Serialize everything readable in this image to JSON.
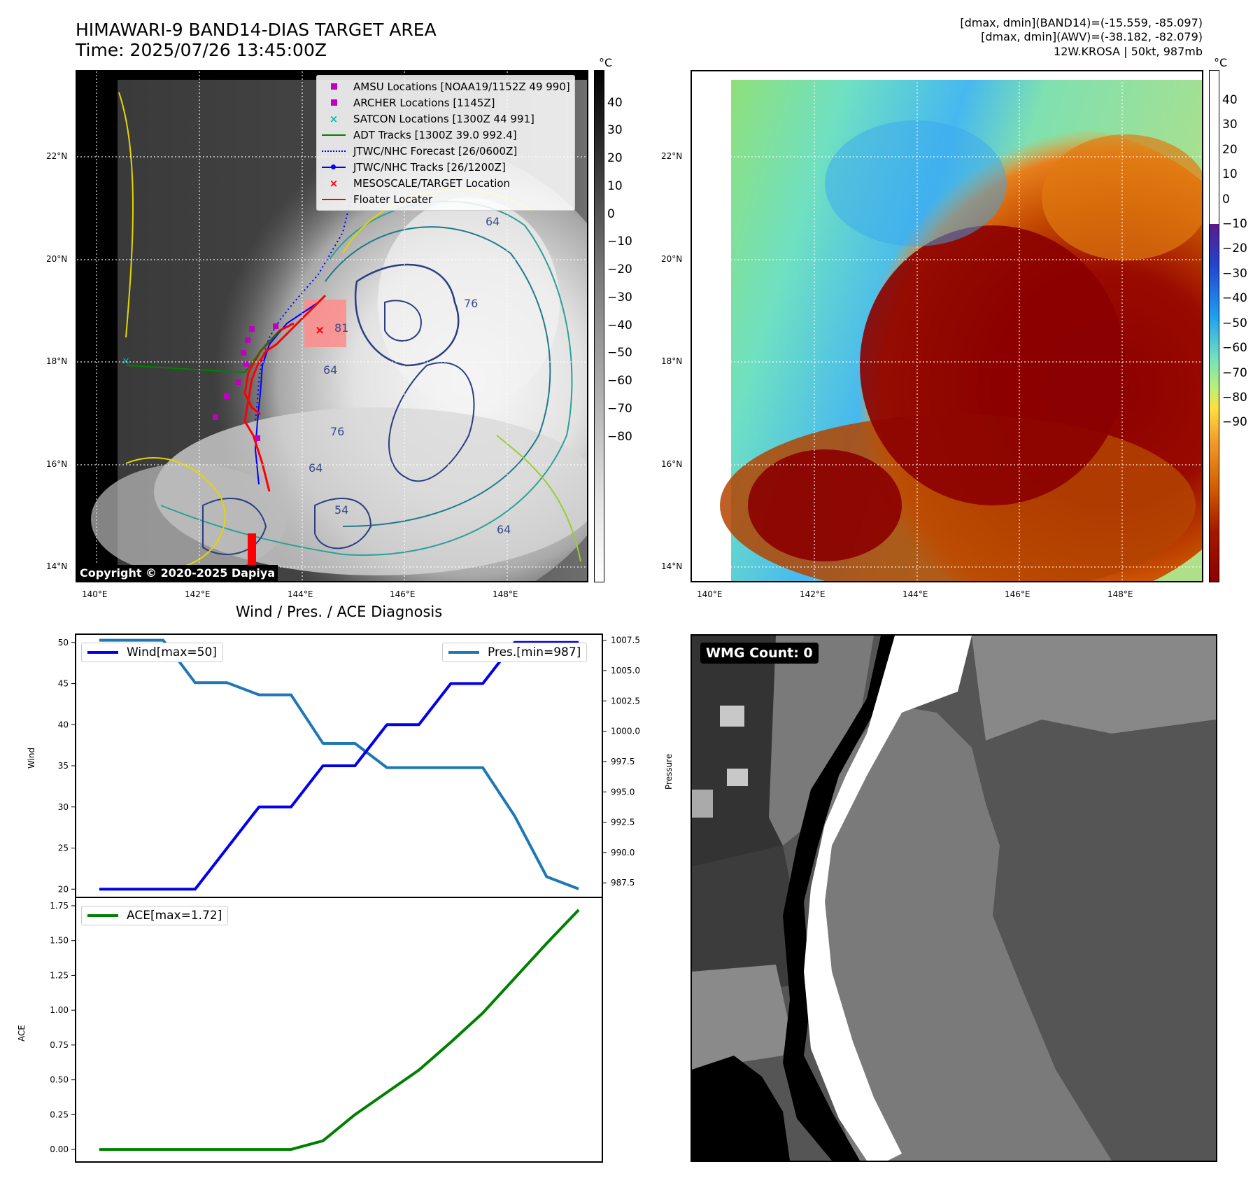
{
  "header": {
    "title_line1": "HIMAWARI-9 BAND14-DIAS TARGET AREA",
    "title_line2": "Time: 2025/07/26 13:45:00Z",
    "info_line1": "[dmax, dmin](BAND14)=(-15.559, -85.097)",
    "info_line2": "[dmax, dmin](AWV)=(-38.182, -82.079)",
    "info_line3": "12W.KROSA | 50kt, 987mb"
  },
  "map_axes": {
    "lat_labels": [
      "22°N",
      "20°N",
      "18°N",
      "16°N",
      "14°N"
    ],
    "lon_labels": [
      "140°E",
      "142°E",
      "144°E",
      "146°E",
      "148°E"
    ],
    "unit": "°C",
    "grayscale_colorbar_ticks": [
      "40",
      "30",
      "20",
      "10",
      "0",
      "−10",
      "−20",
      "−30",
      "−40",
      "−50",
      "−60",
      "−70",
      "−80"
    ],
    "color_colorbar_ticks": [
      "40",
      "30",
      "20",
      "10",
      "0",
      "−10",
      "−20",
      "−30",
      "−40",
      "−50",
      "−60",
      "−70",
      "−80",
      "−90"
    ]
  },
  "contour_labels": [
    "76",
    "81",
    "64",
    "76",
    "64",
    "64",
    "64",
    "54"
  ],
  "legend": {
    "items": [
      {
        "label": "AMSU Locations [NOAA19/1152Z 49 990]",
        "marker": "square",
        "color": "#bf00bf"
      },
      {
        "label": "ARCHER Locations [1145Z]",
        "marker": "square",
        "color": "#bf00bf"
      },
      {
        "label": "SATCON Locations [1300Z 44 991]",
        "marker": "x",
        "color": "#00bfbf"
      },
      {
        "label": "ADT Tracks [1300Z 39.0 992.4]",
        "marker": "line",
        "color": "#008000"
      },
      {
        "label": "JTWC/NHC Forecast [26/0600Z]",
        "marker": "dotted",
        "color": "#0000ff"
      },
      {
        "label": "JTWC/NHC Tracks [26/1200Z]",
        "marker": "line-dot",
        "color": "#0000ff"
      },
      {
        "label": "MESOSCALE/TARGET Location",
        "marker": "x",
        "color": "#ff0000"
      },
      {
        "label": "Floater Locater",
        "marker": "line",
        "color": "#ff0000"
      }
    ]
  },
  "copyright": "Copyright © 2020-2025 Dapiya",
  "wmg_label": "WMG Count: 0",
  "chart_data": [
    {
      "type": "line",
      "title": "Wind / Pres. / ACE Diagnosis",
      "ylabel": "Wind",
      "ylabel_right": "Pressure",
      "ylim": [
        19,
        51
      ],
      "ylim_right": [
        986.3,
        1008.0
      ],
      "yticks": [
        "50",
        "45",
        "40",
        "35",
        "30",
        "25",
        "20"
      ],
      "yticks_right": [
        "1007.5",
        "1005.0",
        "1002.5",
        "1000.0",
        "997.5",
        "995.0",
        "992.5",
        "990.0",
        "987.5"
      ],
      "x": [
        0,
        1,
        2,
        3,
        4,
        5,
        6,
        7,
        8,
        9,
        10,
        11,
        12,
        13,
        14,
        15
      ],
      "series": [
        {
          "name": "Wind[max=50]",
          "axis": "left",
          "color": "#0000ee",
          "values": [
            20,
            20,
            20,
            20,
            25,
            30,
            30,
            35,
            35,
            40,
            40,
            45,
            45,
            50,
            50,
            50
          ]
        },
        {
          "name": "Pres.[min=987]",
          "axis": "right",
          "color": "#1f77b4",
          "values": [
            1007.5,
            1007.5,
            1007.5,
            1004.0,
            1004.0,
            1003.0,
            1003.0,
            999.0,
            999.0,
            997.0,
            997.0,
            997.0,
            997.0,
            993.0,
            988.0,
            987.0
          ]
        }
      ]
    },
    {
      "type": "line",
      "ylabel": "ACE",
      "ylim": [
        -0.09,
        1.81
      ],
      "yticks": [
        "1.75",
        "1.50",
        "1.25",
        "1.00",
        "0.75",
        "0.50",
        "0.25",
        "0.00"
      ],
      "x": [
        0,
        1,
        2,
        3,
        4,
        5,
        6,
        7,
        8,
        9,
        10,
        11,
        12,
        13,
        14,
        15
      ],
      "series": [
        {
          "name": "ACE[max=1.72]",
          "color": "#008000",
          "values": [
            0,
            0,
            0,
            0,
            0,
            0,
            0,
            0.0625,
            0.25,
            0.41,
            0.57,
            0.77,
            0.98,
            1.23,
            1.48,
            1.72
          ]
        }
      ]
    }
  ]
}
